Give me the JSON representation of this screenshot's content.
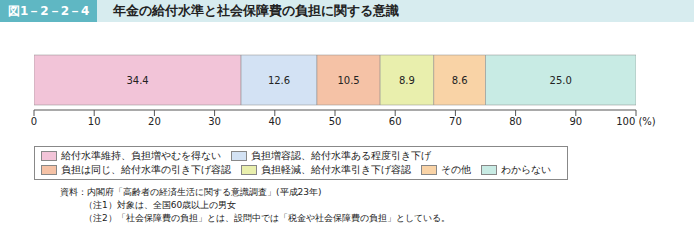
{
  "chart_data": {
    "type": "bar",
    "orientation": "horizontal",
    "stacked": true,
    "data_labels": true,
    "legend": "bottom",
    "title": "図1－2－2－4",
    "subtitle": "年金の給付水準と社会保障費の負担に関する意識",
    "categories": [
      null
    ],
    "series": [
      {
        "name": "給付水準維持、負担増やむを得ない",
        "color": "#f2c4d8",
        "values": [
          34.4
        ]
      },
      {
        "name": "負担増容認、給付水準ある程度引き下げ",
        "color": "#d3e2f4",
        "values": [
          12.6
        ]
      },
      {
        "name": "負担は同じ、給付水準の引き下げ容認",
        "color": "#f5c2a6",
        "values": [
          10.5
        ]
      },
      {
        "name": "負担軽減、給付水準引き下げ容認",
        "color": "#e9efad",
        "values": [
          8.9
        ]
      },
      {
        "name": "その他",
        "color": "#f9d3a6",
        "values": [
          8.6
        ]
      },
      {
        "name": "わからない",
        "color": "#c8ebe4",
        "values": [
          25.0
        ],
        "value_labels": [
          "25.0"
        ]
      }
    ],
    "xlim": [
      0,
      100
    ],
    "xticks": [
      0,
      10,
      20,
      30,
      40,
      50,
      60,
      70,
      80,
      90,
      {
        "value": 100,
        "label": "100 (%)"
      }
    ],
    "annotations": [
      "資料：内閣府「高齢者の経済生活に関する意識調査」(平成23年)",
      "（注1）対象は、全国60歳以上の男女",
      "（注2）「社会保障費の負担」とは、設問中では「税金や社会保障費の負担」としている。"
    ]
  }
}
